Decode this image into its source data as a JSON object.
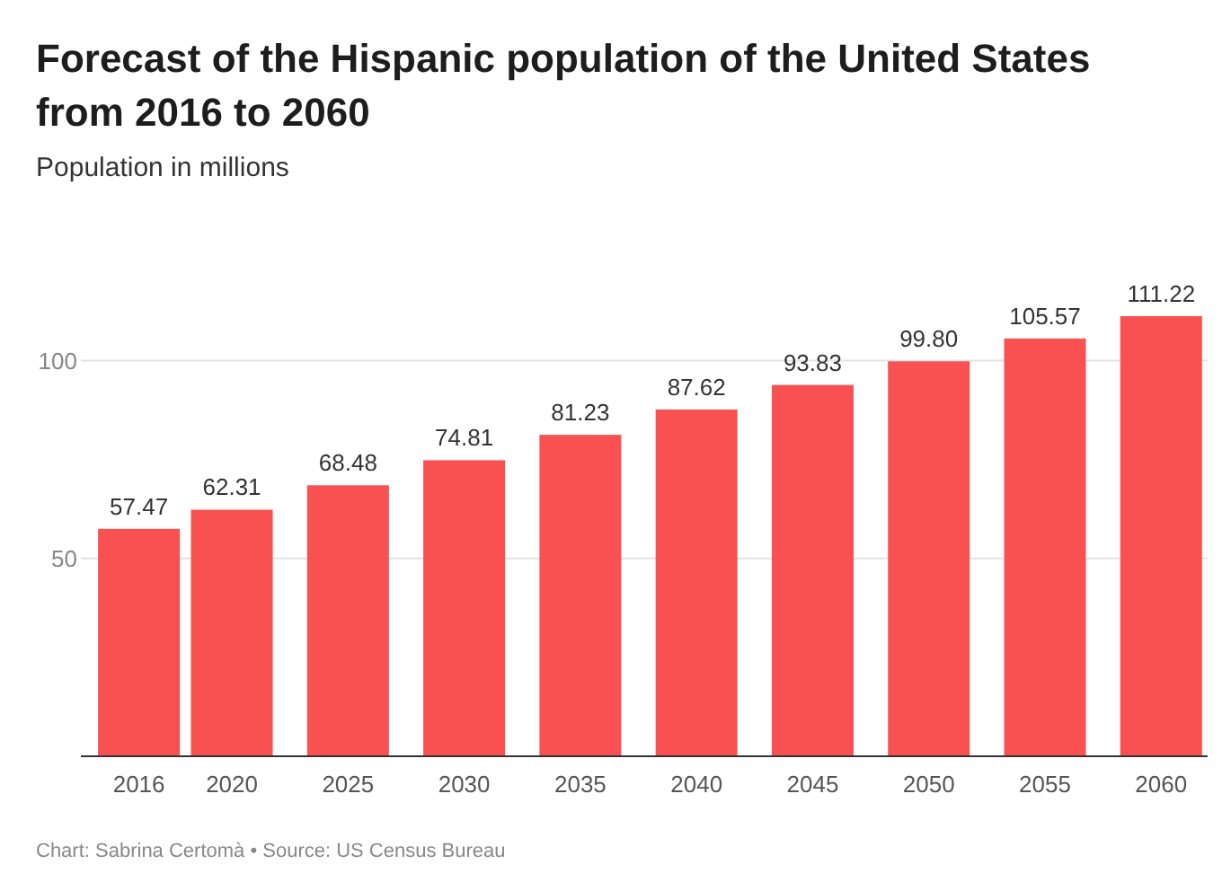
{
  "chart_data": {
    "type": "bar",
    "title": "Forecast of the Hispanic population of the United States from 2016 to 2060",
    "subtitle": "Population in millions",
    "x": [
      2016,
      2020,
      2025,
      2030,
      2035,
      2040,
      2045,
      2050,
      2055,
      2060
    ],
    "values": [
      57.47,
      62.31,
      68.48,
      74.81,
      81.23,
      87.62,
      93.83,
      99.8,
      105.57,
      111.22
    ],
    "value_labels": [
      "57.47",
      "62.31",
      "68.48",
      "74.81",
      "81.23",
      "87.62",
      "93.83",
      "99.80",
      "105.57",
      "111.22"
    ],
    "color": "#f95051",
    "xlim": [
      2013.5,
      2062
    ],
    "xticks": [
      2016,
      2020,
      2025,
      2030,
      2035,
      2040,
      2045,
      2050,
      2055,
      2060
    ],
    "ylim": [
      0,
      111.22
    ],
    "yticks": [
      {
        "value": 0,
        "label": null
      },
      50,
      100
    ],
    "grid": "y",
    "annotations": [
      "Chart: Sabrina Certomà • Source: US Census Bureau"
    ]
  }
}
